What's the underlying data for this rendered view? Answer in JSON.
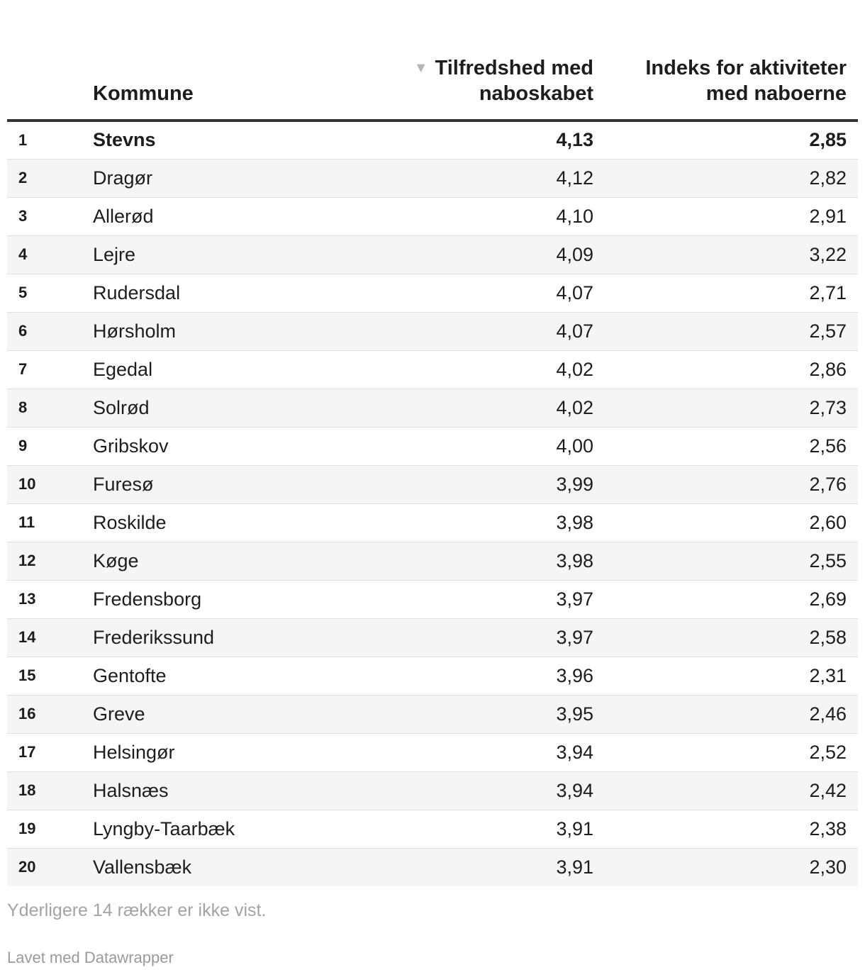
{
  "chart_data": {
    "type": "table",
    "columns": {
      "rank": "",
      "name": "Kommune",
      "value1": "Tilfredshed med naboskabet",
      "value2": "Indeks for aktiviteter med naboerne"
    },
    "sort": {
      "column": "value1",
      "direction": "descending",
      "icon": "sort-down-icon"
    },
    "rows": [
      {
        "rank": "1",
        "name": "Stevns",
        "value1": "4,13",
        "value2": "2,85"
      },
      {
        "rank": "2",
        "name": "Dragør",
        "value1": "4,12",
        "value2": "2,82"
      },
      {
        "rank": "3",
        "name": "Allerød",
        "value1": "4,10",
        "value2": "2,91"
      },
      {
        "rank": "4",
        "name": "Lejre",
        "value1": "4,09",
        "value2": "3,22"
      },
      {
        "rank": "5",
        "name": "Rudersdal",
        "value1": "4,07",
        "value2": "2,71"
      },
      {
        "rank": "6",
        "name": "Hørsholm",
        "value1": "4,07",
        "value2": "2,57"
      },
      {
        "rank": "7",
        "name": "Egedal",
        "value1": "4,02",
        "value2": "2,86"
      },
      {
        "rank": "8",
        "name": "Solrød",
        "value1": "4,02",
        "value2": "2,73"
      },
      {
        "rank": "9",
        "name": "Gribskov",
        "value1": "4,00",
        "value2": "2,56"
      },
      {
        "rank": "10",
        "name": "Furesø",
        "value1": "3,99",
        "value2": "2,76"
      },
      {
        "rank": "11",
        "name": "Roskilde",
        "value1": "3,98",
        "value2": "2,60"
      },
      {
        "rank": "12",
        "name": "Køge",
        "value1": "3,98",
        "value2": "2,55"
      },
      {
        "rank": "13",
        "name": "Fredensborg",
        "value1": "3,97",
        "value2": "2,69"
      },
      {
        "rank": "14",
        "name": "Frederikssund",
        "value1": "3,97",
        "value2": "2,58"
      },
      {
        "rank": "15",
        "name": "Gentofte",
        "value1": "3,96",
        "value2": "2,31"
      },
      {
        "rank": "16",
        "name": "Greve",
        "value1": "3,95",
        "value2": "2,46"
      },
      {
        "rank": "17",
        "name": "Helsingør",
        "value1": "3,94",
        "value2": "2,52"
      },
      {
        "rank": "18",
        "name": "Halsnæs",
        "value1": "3,94",
        "value2": "2,42"
      },
      {
        "rank": "19",
        "name": "Lyngby-Taarbæk",
        "value1": "3,91",
        "value2": "2,38"
      },
      {
        "rank": "20",
        "name": "Vallensbæk",
        "value1": "3,91",
        "value2": "2,30"
      }
    ],
    "highlighted_row": "Stevns",
    "notes": "Yderligere 14 rækker er ikke vist."
  },
  "footer": {
    "credit": "Lavet med Datawrapper"
  },
  "colors": {
    "text": "#1d1d1d",
    "header_rule": "#333333",
    "stripe": "#f5f5f5",
    "muted": "#a3a3a3"
  }
}
